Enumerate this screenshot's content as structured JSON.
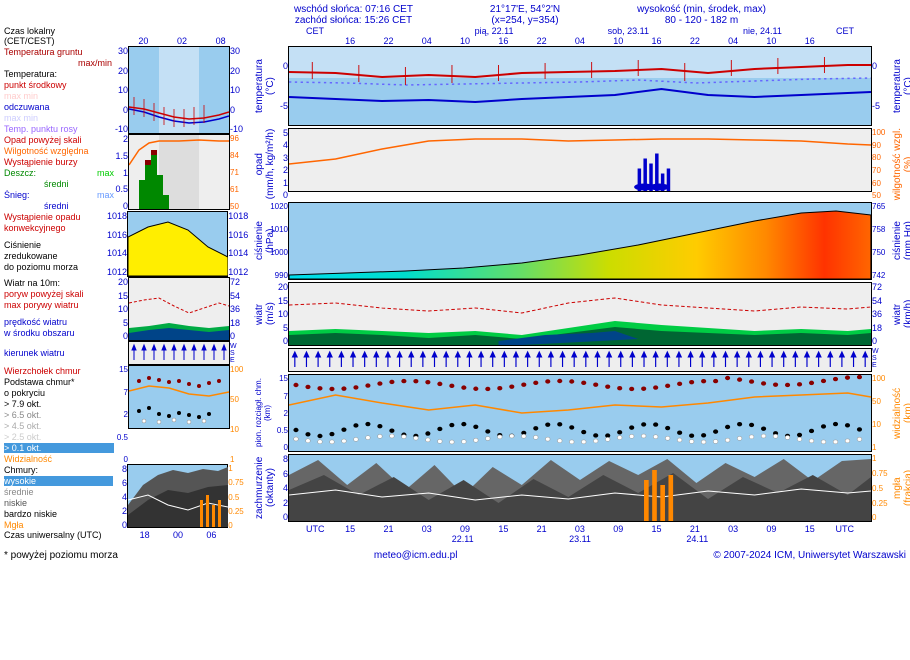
{
  "header": {
    "sunrise": "wschód słońca: 07:16 CET",
    "sunset": "zachód słońca: 15:26 CET",
    "coords": "21°17'E, 54°2'N",
    "grid": "(x=254, y=354)",
    "elev_label": "wysokość (min, środek, max)",
    "elev": "80 - 120 - 182 m"
  },
  "left_labels": {
    "local_time": "Czas lokalny",
    "tz": "(CET/CEST)",
    "ground_temp": "Temperatura gruntu",
    "maxmin": "max/min",
    "temp": "Temperatura:",
    "midpoint": "punkt środkowy",
    "max_min": "max  min",
    "felt": "odczuwana",
    "felt_mm": "max  min",
    "dewpoint": "Temp. punktu rosy",
    "precip_over": "Opad powyżej skali",
    "rel_hum": "Wilgotność względna",
    "storm": "Wystąpienie burzy",
    "rain": "Deszcz:",
    "rain_max": "max",
    "rain_avg": "średni",
    "snow": "Śnieg:",
    "snow_max": "max",
    "snow_avg": "średni",
    "conv_precip": "Wystąpienie opadu",
    "conv_precip2": "konwekcyjnego",
    "pressure": "Ciśnienie",
    "pressure2": "zredukowane",
    "pressure3": "do poziomu morza",
    "wind10": "Wiatr na 10m:",
    "gust_over": "poryw powyżej skali",
    "gust_max": "max porywy wiatru",
    "wind_speed": "prędkość wiatru",
    "wind_speed2": "w środku obszaru",
    "wind_dir": "kierunek wiatru",
    "cloud_top": "Wierzchołek chmur",
    "cloud_base": "Podstawa chmur*",
    "cloud_cover": "o pokryciu",
    "okt79": "> 7.9 okt.",
    "okt65": "> 6.5 okt.",
    "okt45": "> 4.5 okt.",
    "okt25": "> 2.5 okt.",
    "okt01": "> 0.1 okt.",
    "visibility": "Widzialność",
    "clouds": "Chmury:",
    "high": "wysokie",
    "mid": "średnie",
    "low": "niskie",
    "vlow": "bardzo niskie",
    "fog": "Mgła",
    "utc": "Czas uniwersalny (UTC)"
  },
  "right_vlabels": {
    "temp_l": "temperatura",
    "temp_lu": "(°C)",
    "temp_r": "temperatura",
    "temp_ru": "(°C)",
    "precip_l": "opad",
    "precip_lu": "(mm/h, kg/m²/h)",
    "hum_r": "wilgotność wzgl.",
    "hum_ru": "(%)",
    "press_l": "ciśnienie",
    "press_lu": "(hPa)",
    "press_r": "ciśnienie",
    "press_ru": "(mm Hg)",
    "wind_l": "wiatr",
    "wind_lu": "(m/s)",
    "wind_r": "wiatr",
    "wind_ru": "(km/h)",
    "cloud_l": "pion. rozciągł. chm.",
    "cloud_lu": "(km)",
    "vis_r": "widzialność",
    "vis_ru": "(km)",
    "okt_l": "zachmurzenie",
    "okt_lu": "(oktanty)",
    "fog_r": "mgła",
    "fog_ru": "(frakcja)"
  },
  "dates": {
    "d1": "pią, 22.11",
    "d2": "sob, 23.11",
    "d3": "nie, 24.11"
  },
  "hours_top": [
    "16",
    "22",
    "04",
    "10",
    "16",
    "22",
    "04",
    "10",
    "16",
    "22",
    "04",
    "10",
    "16"
  ],
  "hours_bot": [
    "15",
    "21",
    "03",
    "09",
    "15",
    "21",
    "03",
    "09",
    "15",
    "21",
    "03",
    "09",
    "15"
  ],
  "dates_bot": [
    "22.11",
    "23.11",
    "24.11"
  ],
  "mini_hours_top": [
    "20",
    "02",
    "08"
  ],
  "mini_hours_bot": [
    "18",
    "00",
    "06"
  ],
  "colors": {
    "blue": "#0000cc",
    "red": "#cc0000",
    "green": "#008800",
    "darkred": "#880000",
    "skyblue": "#99ccee",
    "lightblue": "#c4e0f5",
    "yellow": "#ffee00",
    "orange": "#ff8800",
    "cyan": "#00ddee",
    "darkgreen": "#006644",
    "grey": "#888",
    "darkgrey": "#444",
    "purple": "#9966ff"
  },
  "temp_chart": {
    "ylim_l": [
      -5,
      5
    ],
    "yticks_l": [
      0,
      -5
    ],
    "ylim_r": [
      -5,
      5
    ],
    "yticks_r": [
      0,
      -5
    ],
    "line_red_color": "#cc0000",
    "line_blue_color": "#0000cc",
    "dotted_color": "#6666ff",
    "bg_upper": "#c4e0f5",
    "bg_lower": "#99ccee"
  },
  "mini_temp": {
    "ylim": [
      -10,
      30
    ],
    "yticks": [
      30,
      20,
      10,
      0,
      -10
    ],
    "bg": "#99ccee"
  },
  "mini_precip": {
    "ylim": [
      0,
      2
    ],
    "yticks_l": [
      2.0,
      1.5,
      1.0,
      0.5,
      0
    ],
    "yticks_r": [
      96,
      84,
      71,
      61,
      50
    ],
    "bg": "#eeeeee",
    "hum_color": "#ff6600"
  },
  "mini_press": {
    "ylim": [
      1012,
      1018
    ],
    "yticks": [
      1018,
      1016,
      1014,
      1012
    ],
    "bg": "#99ccee",
    "fill": "#ffee00"
  },
  "mini_wind": {
    "ylim": [
      0,
      20
    ],
    "yticks_l": [
      20,
      15,
      10,
      5,
      0
    ],
    "yticks_r": [
      72,
      54,
      36,
      18,
      0
    ],
    "bg": "#eeeeee"
  },
  "mini_cloud": {
    "yticks_l": [
      15.0,
      7.0,
      2.0,
      0.5,
      0
    ],
    "yticks_r": [
      100,
      50,
      10,
      1
    ],
    "bg": "#99ccee"
  },
  "mini_okt": {
    "yticks_l": [
      8,
      6,
      4,
      2,
      0
    ],
    "yticks_r": [
      1,
      0.75,
      0.5,
      0.25,
      0
    ],
    "bg": "#99ccee"
  },
  "precip_chart": {
    "yticks_l": [
      5,
      4,
      3,
      2,
      1,
      0
    ],
    "yticks_r": [
      100,
      90,
      80,
      70,
      60,
      50
    ],
    "bg": "#eeeeee",
    "hum_color": "#ff6600"
  },
  "press_chart": {
    "yticks_l": [
      1020,
      1010,
      1000,
      990
    ],
    "yticks_r": [
      765,
      758,
      750,
      742
    ],
    "bg": "#99ccee"
  },
  "wind_chart": {
    "yticks_l": [
      20,
      15,
      10,
      5,
      0
    ],
    "yticks_r": [
      72,
      54,
      36,
      18,
      0
    ],
    "bg": "#eeeeee"
  },
  "cloud_chart": {
    "yticks_l": [
      15.0,
      7.0,
      2.0,
      0.5,
      0
    ],
    "yticks_r": [
      100,
      50,
      10,
      1
    ],
    "bg": "#99ccee"
  },
  "okt_chart": {
    "yticks_l": [
      8,
      6,
      4,
      2,
      0
    ],
    "yticks_r": [
      1,
      0.75,
      0.5,
      0.25,
      0
    ],
    "bg": "#99ccee"
  },
  "cet_label": "CET",
  "utc_label": "UTC",
  "wse": "W\nS\nE",
  "footer": {
    "note": "* powyżej poziomu morza",
    "email": "meteo@icm.edu.pl",
    "copy": "© 2007-2024 ICM, Uniwersytet Warszawski"
  }
}
